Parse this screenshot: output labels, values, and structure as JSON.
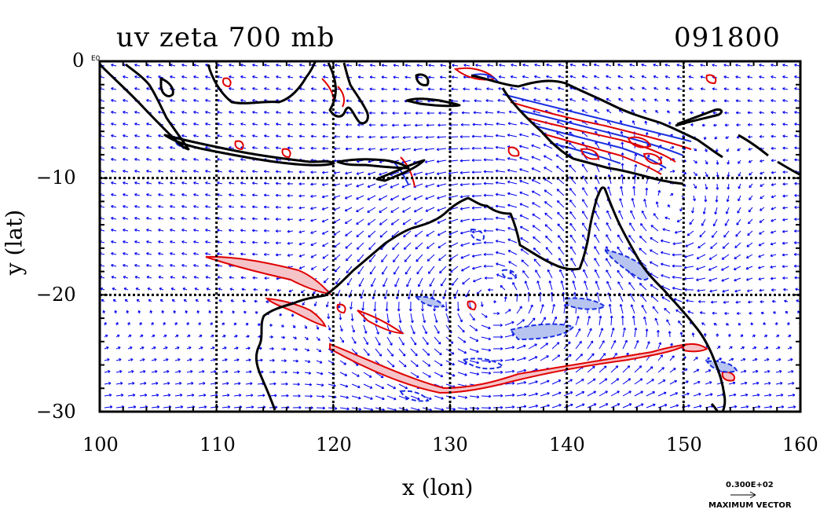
{
  "title_left": "uv zeta 700 mb",
  "title_right": "091800",
  "xlabel": "x (lon)",
  "ylabel": "y (lat)",
  "x_ticks": [
    "100",
    "110",
    "120",
    "130",
    "140",
    "150",
    "160"
  ],
  "y_ticks": [
    "0",
    "−10",
    "−20",
    "−30"
  ],
  "corner_label": "E0",
  "vector_scale_value": "0.300E+02",
  "vector_scale_caption": "MAXIMUM VECTOR",
  "map": {
    "lon_range": [
      100,
      160
    ],
    "lat_range": [
      -30,
      0
    ],
    "grid_lon": [
      110,
      120,
      130,
      140,
      150
    ],
    "grid_lat": [
      -10,
      -20
    ]
  },
  "colors": {
    "coast": "#000000",
    "vector": "#0000ee",
    "positive_contour": "#e00000",
    "positive_fill": "#f4c4c8",
    "negative_contour": "#1a2fe0",
    "negative_fill": "#b8c4f0"
  }
}
